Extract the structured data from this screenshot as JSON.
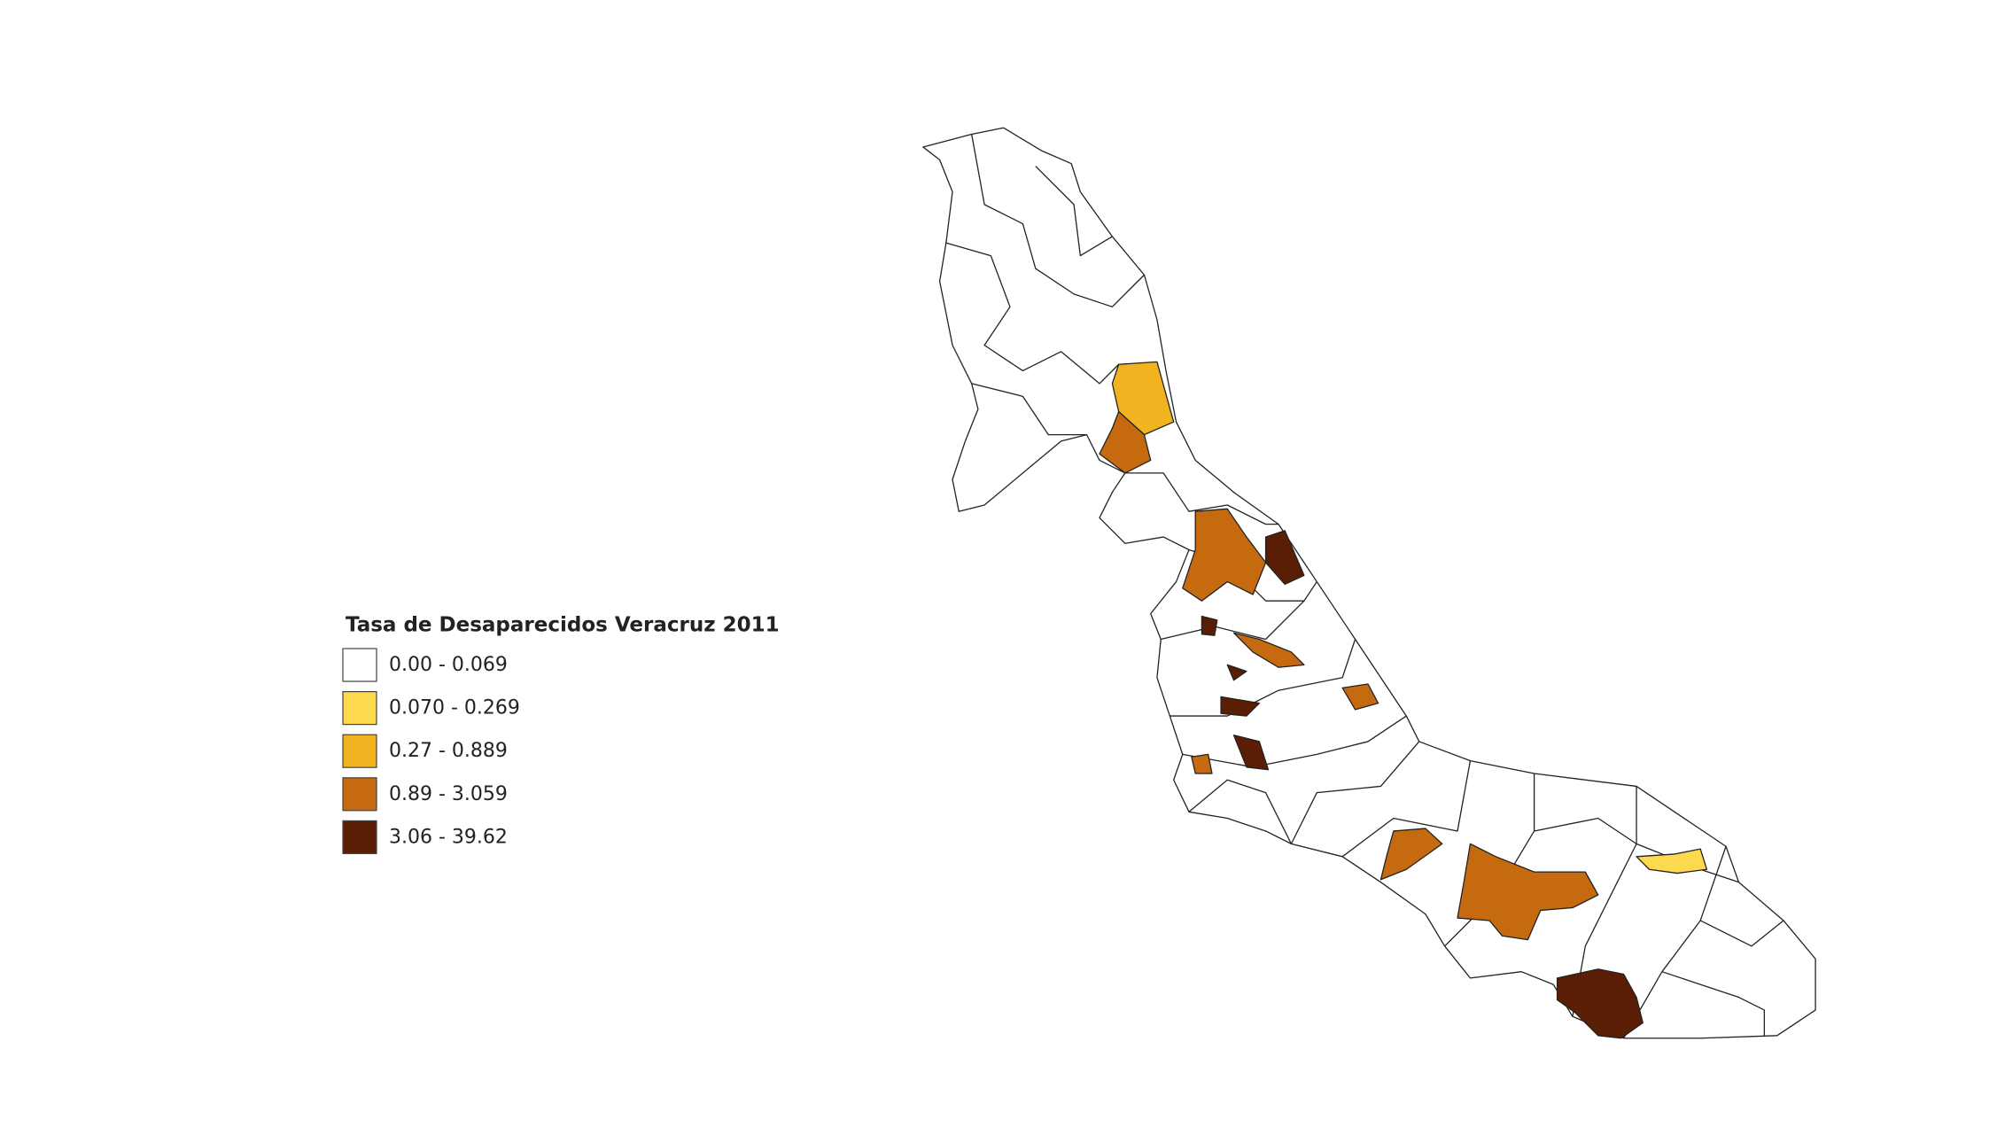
{
  "legend": {
    "title": "Tasa de Desaparecidos Veracruz 2011",
    "items": [
      {
        "label": "0.00 - 0.069",
        "color": "#ffffff"
      },
      {
        "label": "0.070 - 0.269",
        "color": "#fdd94e"
      },
      {
        "label": "0.27 - 0.889",
        "color": "#f2b320"
      },
      {
        "label": "0.89 - 3.059",
        "color": "#c56a0e"
      },
      {
        "label": "3.06 - 39.62",
        "color": "#5a1e04"
      }
    ]
  }
}
